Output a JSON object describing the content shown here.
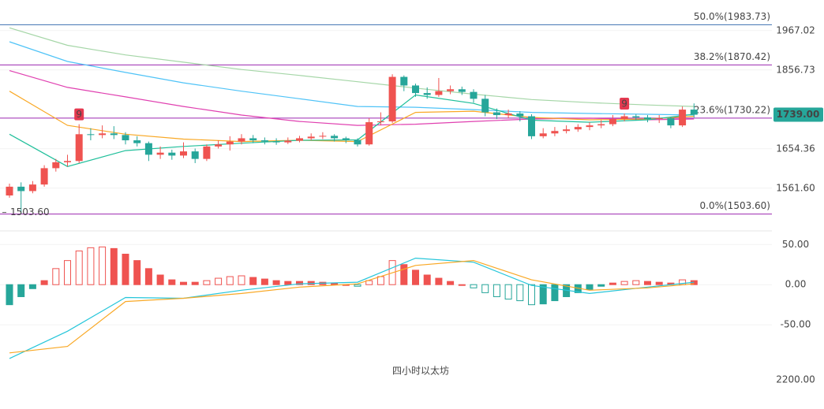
{
  "chart_data": [
    {
      "type": "candlestick",
      "log_scale": true,
      "ylim": [
        1472,
        2057
      ],
      "yticks": [
        1967.02,
        1856.73,
        1654.36,
        {
          "value": 1561.6,
          "label": "1561.60"
        }
      ],
      "up_color": "#ef5350",
      "down_color": "#26a69a",
      "open": [
        1545,
        1565,
        1555,
        1570,
        1608,
        1622,
        1625,
        1690,
        1688,
        1692,
        1688,
        1675,
        1668,
        1640,
        1645,
        1638,
        1648,
        1630,
        1660,
        1665,
        1672,
        1680,
        1675,
        1672,
        1670,
        1674,
        1680,
        1684,
        1686,
        1680,
        1676,
        1665,
        1720,
        1722,
        1838,
        1815,
        1795,
        1790,
        1800,
        1805,
        1798,
        1780,
        1745,
        1738,
        1742,
        1735,
        1685,
        1692,
        1698,
        1702,
        1708,
        1712,
        1715,
        1728,
        1735,
        1732,
        1728,
        1730,
        1712,
        1752
      ],
      "high": [
        1572,
        1575,
        1578,
        1615,
        1630,
        1640,
        1715,
        1705,
        1712,
        1710,
        1695,
        1685,
        1672,
        1660,
        1652,
        1670,
        1655,
        1665,
        1675,
        1685,
        1690,
        1688,
        1682,
        1680,
        1682,
        1686,
        1692,
        1695,
        1690,
        1684,
        1680,
        1730,
        1745,
        1845,
        1842,
        1820,
        1810,
        1835,
        1815,
        1812,
        1805,
        1790,
        1755,
        1752,
        1748,
        1740,
        1705,
        1708,
        1712,
        1715,
        1720,
        1725,
        1738,
        1742,
        1740,
        1738,
        1738,
        1734,
        1760,
        1768
      ],
      "low": [
        1540,
        1503.6,
        1550,
        1565,
        1600,
        1612,
        1620,
        1675,
        1680,
        1678,
        1665,
        1660,
        1625,
        1630,
        1628,
        1632,
        1620,
        1625,
        1655,
        1650,
        1665,
        1668,
        1665,
        1664,
        1666,
        1670,
        1675,
        1678,
        1672,
        1668,
        1660,
        1662,
        1712,
        1718,
        1800,
        1785,
        1780,
        1785,
        1792,
        1790,
        1770,
        1735,
        1728,
        1730,
        1722,
        1678,
        1680,
        1685,
        1692,
        1696,
        1700,
        1705,
        1710,
        1722,
        1725,
        1720,
        1718,
        1705,
        1708,
        1732
      ],
      "close": [
        1565,
        1555,
        1570,
        1608,
        1622,
        1625,
        1690,
        1688,
        1692,
        1688,
        1675,
        1668,
        1640,
        1645,
        1638,
        1648,
        1630,
        1660,
        1665,
        1672,
        1680,
        1675,
        1672,
        1670,
        1674,
        1680,
        1684,
        1686,
        1680,
        1676,
        1665,
        1720,
        1722,
        1838,
        1815,
        1795,
        1790,
        1800,
        1805,
        1798,
        1780,
        1745,
        1738,
        1742,
        1735,
        1685,
        1692,
        1698,
        1702,
        1708,
        1712,
        1715,
        1728,
        1735,
        1732,
        1728,
        1730,
        1712,
        1752,
        1739
      ],
      "ma_x": [
        0,
        5,
        10,
        15,
        20,
        25,
        30,
        35,
        40,
        45,
        50,
        55,
        59
      ],
      "lines": [
        {
          "color": "#a5d6a7",
          "values": [
            1975,
            1925,
            1898,
            1878,
            1858,
            1842,
            1825,
            1808,
            1792,
            1778,
            1770,
            1764,
            1760
          ]
        },
        {
          "color": "#4fc3f7",
          "values": [
            1935,
            1880,
            1850,
            1822,
            1800,
            1780,
            1760,
            1758,
            1752,
            1745,
            1742,
            1740,
            1738
          ]
        },
        {
          "color": "#e040b0",
          "values": [
            1855,
            1810,
            1785,
            1760,
            1738,
            1722,
            1712,
            1715,
            1722,
            1728,
            1730,
            1726,
            1728
          ]
        },
        {
          "color": "#f9a825",
          "values": [
            1800,
            1712,
            1690,
            1678,
            1672,
            1675,
            1672,
            1745,
            1748,
            1732,
            1726,
            1728,
            1735
          ]
        },
        {
          "color": "#1fbf9a",
          "values": [
            1690,
            1612,
            1650,
            1660,
            1668,
            1675,
            1676,
            1790,
            1768,
            1725,
            1720,
            1726,
            1740
          ]
        }
      ],
      "fib_levels": [
        {
          "value": 1983.73,
          "label": "50.0%(1983.73)",
          "color": "#3d6fb0"
        },
        {
          "value": 1870.42,
          "label": "38.2%(1870.42)",
          "color": "#9c27b0"
        },
        {
          "value": 1730.22,
          "label": "23.6%(1730.22)",
          "color": "#9c27b0"
        },
        {
          "value": 1503.6,
          "label": "0.0%(1503.60)",
          "color": "#9c27b0"
        }
      ],
      "last_price": {
        "value": 1739,
        "label": "1739.00",
        "color": "#26a69a"
      },
      "low_label": {
        "value": 1503.6,
        "label": "1503.60"
      },
      "td_labels": [
        "9",
        "9"
      ]
    },
    {
      "type": "macd",
      "title": "四小时以太坊",
      "ylim": [
        -97,
        65
      ],
      "yticks": [
        {
          "value": 50,
          "label": "50.00"
        },
        {
          "value": 0,
          "label": "0.00"
        },
        {
          "value": -50,
          "label": "-50.00"
        }
      ],
      "histogram": [
        -25,
        -15,
        -5,
        5,
        20,
        30,
        42,
        46,
        47,
        45,
        38,
        30,
        20,
        12,
        6,
        3,
        3,
        5,
        8,
        10,
        11,
        9,
        7,
        5,
        4,
        4,
        4,
        3,
        2,
        0,
        -2,
        5,
        10,
        30,
        25,
        18,
        12,
        8,
        4,
        0,
        -4,
        -10,
        -15,
        -18,
        -20,
        -25,
        -24,
        -20,
        -15,
        -10,
        -6,
        -2,
        2,
        4,
        5,
        4,
        3,
        2,
        6,
        5
      ],
      "up_color": "#ef5350",
      "down_color": "#26a69a",
      "line_x": [
        0,
        5,
        10,
        15,
        20,
        25,
        30,
        35,
        40,
        45,
        50,
        55,
        59
      ],
      "lines": [
        {
          "color": "#26c6da",
          "values": [
            -92,
            -58,
            -16,
            -17,
            -7,
            1,
            3,
            33,
            28,
            -1,
            -11,
            -3,
            3
          ]
        },
        {
          "color": "#f9a825",
          "values": [
            -85,
            -77,
            -21,
            -17,
            -11,
            -3,
            1,
            24,
            30,
            6,
            -7,
            -4,
            1
          ]
        }
      ],
      "extra_axis_label": "2200.00"
    }
  ]
}
